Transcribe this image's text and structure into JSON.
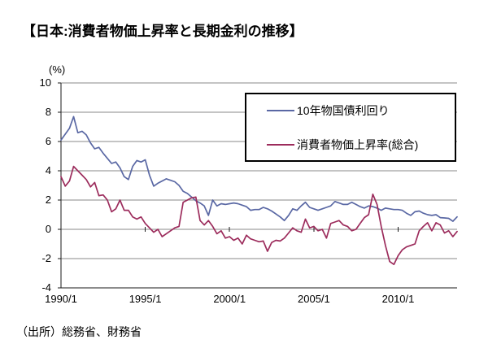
{
  "page": {
    "title": "【日本:消費者物価上昇率と長期金利の推移】",
    "source": "（出所）総務省、財務省"
  },
  "chart_data": {
    "type": "line",
    "title": "【日本:消費者物価上昇率と長期金利の推移】",
    "y_unit_label": "(%)",
    "ylabel": "",
    "xlabel": "",
    "ylim": [
      -4,
      10
    ],
    "y_ticks": [
      10,
      8,
      6,
      4,
      2,
      0,
      -2,
      -4
    ],
    "y_tick_labels": [
      "10",
      "8",
      "6",
      "4",
      "2",
      "0",
      "-2",
      "-4"
    ],
    "x_tick_years": [
      1990,
      1995,
      2000,
      2005,
      2010
    ],
    "x_tick_labels": [
      "1990/1",
      "1995/1",
      "2000/1",
      "2005/1",
      "2010/1"
    ],
    "x_start": 1990.0,
    "x_step": 0.25,
    "x_end": 2013.5,
    "grid": "horizontal",
    "legend_position": "top-right-inside",
    "grid_color": "#8a8a8a",
    "axis_color": "#1a1a1a",
    "series": [
      {
        "name": "10年物国債利回り",
        "color": "#5a68a4",
        "values": [
          6.1,
          6.5,
          6.9,
          7.7,
          6.6,
          6.7,
          6.45,
          5.9,
          5.5,
          5.6,
          5.2,
          4.85,
          4.5,
          4.6,
          4.2,
          3.6,
          3.4,
          4.3,
          4.7,
          4.6,
          4.75,
          3.7,
          2.95,
          3.15,
          3.3,
          3.45,
          3.35,
          3.25,
          3.0,
          2.6,
          2.45,
          2.2,
          1.95,
          1.8,
          1.6,
          0.95,
          2.0,
          1.6,
          1.75,
          1.7,
          1.75,
          1.8,
          1.75,
          1.65,
          1.55,
          1.3,
          1.35,
          1.35,
          1.5,
          1.4,
          1.25,
          1.05,
          0.85,
          0.6,
          0.95,
          1.4,
          1.3,
          1.6,
          1.85,
          1.5,
          1.4,
          1.3,
          1.4,
          1.5,
          1.6,
          1.9,
          1.8,
          1.7,
          1.7,
          1.85,
          1.7,
          1.55,
          1.45,
          1.6,
          1.55,
          1.45,
          1.3,
          1.45,
          1.4,
          1.35,
          1.35,
          1.3,
          1.1,
          0.95,
          1.2,
          1.25,
          1.1,
          1.0,
          0.95,
          1.0,
          0.8,
          0.78,
          0.75,
          0.55,
          0.85
        ]
      },
      {
        "name": "消費者物価上昇率(総合)",
        "color": "#9c2c5c",
        "values": [
          3.6,
          2.95,
          3.3,
          4.3,
          4.0,
          3.7,
          3.4,
          2.9,
          3.2,
          2.3,
          2.35,
          2.0,
          1.2,
          1.4,
          2.0,
          1.3,
          1.3,
          0.85,
          0.7,
          0.85,
          0.4,
          0.1,
          -0.2,
          0.0,
          -0.5,
          -0.3,
          -0.1,
          0.1,
          0.2,
          1.85,
          2.0,
          2.15,
          2.2,
          0.6,
          0.3,
          0.6,
          0.2,
          -0.3,
          -0.1,
          -0.6,
          -0.5,
          -0.75,
          -0.6,
          -1.0,
          -0.4,
          -0.65,
          -0.75,
          -0.85,
          -0.8,
          -1.5,
          -0.9,
          -0.75,
          -0.8,
          -0.6,
          -0.25,
          0.1,
          -0.1,
          -0.2,
          0.7,
          0.1,
          0.2,
          -0.1,
          0.0,
          -0.6,
          0.4,
          0.5,
          0.6,
          0.3,
          0.2,
          -0.1,
          0.0,
          0.4,
          0.8,
          1.0,
          2.4,
          1.7,
          0.2,
          -1.1,
          -2.2,
          -2.4,
          -1.8,
          -1.4,
          -1.2,
          -1.1,
          -1.0,
          -0.1,
          0.2,
          0.45,
          -0.1,
          0.45,
          0.3,
          -0.25,
          -0.1,
          -0.5,
          -0.15
        ]
      }
    ]
  }
}
